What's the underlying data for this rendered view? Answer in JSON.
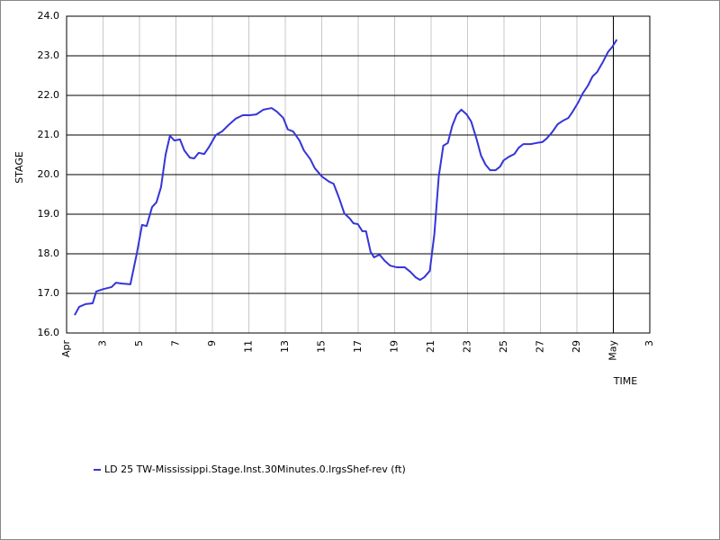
{
  "chart_data": {
    "type": "line",
    "x_label": "TIME",
    "y_label": "STAGE",
    "xlim": [
      1,
      33
    ],
    "xticks": [
      {
        "value": 1,
        "label": "Apr"
      },
      3,
      5,
      7,
      9,
      11,
      13,
      15,
      17,
      19,
      21,
      23,
      25,
      27,
      29,
      {
        "value": 31,
        "label": "May"
      },
      {
        "value": 33,
        "label": "3"
      }
    ],
    "ylim": [
      16,
      24
    ],
    "yticks": [
      {
        "value": 16,
        "label": "16.0"
      },
      {
        "value": 17,
        "label": "17.0"
      },
      {
        "value": 18,
        "label": "18.0"
      },
      {
        "value": 19,
        "label": "19.0"
      },
      {
        "value": 20,
        "label": "20.0"
      },
      {
        "value": 21,
        "label": "21.0"
      },
      {
        "value": 22,
        "label": "22.0"
      },
      {
        "value": 23,
        "label": "23.0"
      },
      {
        "value": 24,
        "label": "24.0"
      }
    ],
    "grid": true,
    "legend": "bottom-left",
    "x": [
      1.44,
      1.69,
      2.04,
      2.43,
      2.63,
      3.02,
      3.47,
      3.71,
      4.01,
      4.5,
      4.85,
      5.14,
      5.39,
      5.69,
      5.93,
      6.18,
      6.43,
      6.67,
      6.92,
      7.22,
      7.46,
      7.76,
      8.0,
      8.25,
      8.55,
      8.79,
      9.19,
      9.53,
      9.88,
      10.27,
      10.67,
      11.06,
      11.41,
      11.8,
      12.25,
      12.54,
      12.89,
      13.14,
      13.43,
      13.78,
      14.02,
      14.37,
      14.62,
      15.01,
      15.41,
      15.65,
      15.95,
      16.24,
      16.54,
      16.74,
      16.98,
      17.23,
      17.43,
      17.68,
      17.87,
      18.17,
      18.46,
      18.76,
      19.11,
      19.55,
      19.85,
      20.14,
      20.39,
      20.63,
      20.93,
      21.18,
      21.42,
      21.67,
      21.92,
      22.16,
      22.41,
      22.66,
      22.95,
      23.2,
      23.5,
      23.74,
      23.99,
      24.24,
      24.53,
      24.78,
      24.98,
      25.27,
      25.57,
      25.81,
      26.06,
      26.46,
      26.8,
      27.1,
      27.34,
      27.64,
      27.94,
      28.23,
      28.53,
      28.77,
      29.07,
      29.32,
      29.61,
      29.86,
      30.11,
      30.4,
      30.7,
      30.95,
      31.19
    ],
    "series": [
      {
        "name": "LD 25 TW-Mississippi.Stage.Inst.30Minutes.0.lrgsShef-rev (ft)",
        "color": "#3535d8",
        "values": [
          16.45,
          16.66,
          16.73,
          16.75,
          17.05,
          17.11,
          17.16,
          17.27,
          17.25,
          17.23,
          18.0,
          18.73,
          18.7,
          19.18,
          19.3,
          19.68,
          20.5,
          20.98,
          20.86,
          20.89,
          20.61,
          20.43,
          20.41,
          20.55,
          20.52,
          20.68,
          21.0,
          21.09,
          21.25,
          21.41,
          21.5,
          21.5,
          21.52,
          21.64,
          21.68,
          21.59,
          21.43,
          21.14,
          21.09,
          20.86,
          20.61,
          20.39,
          20.16,
          19.95,
          19.82,
          19.77,
          19.41,
          19.02,
          18.89,
          18.77,
          18.75,
          18.57,
          18.57,
          18.05,
          17.91,
          17.98,
          17.82,
          17.7,
          17.66,
          17.66,
          17.55,
          17.41,
          17.34,
          17.41,
          17.57,
          18.5,
          19.95,
          20.73,
          20.8,
          21.23,
          21.52,
          21.64,
          21.52,
          21.34,
          20.89,
          20.48,
          20.25,
          20.11,
          20.11,
          20.2,
          20.36,
          20.45,
          20.52,
          20.68,
          20.77,
          20.77,
          20.8,
          20.82,
          20.91,
          21.07,
          21.27,
          21.36,
          21.43,
          21.59,
          21.82,
          22.05,
          22.25,
          22.48,
          22.59,
          22.82,
          23.09,
          23.23,
          23.41
        ]
      }
    ]
  }
}
